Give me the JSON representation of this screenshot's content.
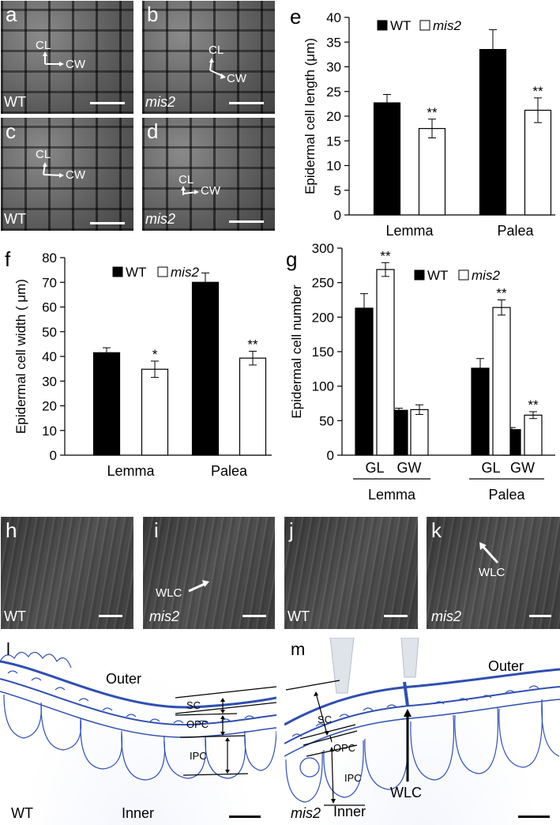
{
  "sem_panels": {
    "a": {
      "letter": "a",
      "genotype": "WT",
      "cl": "CL",
      "cw": "CW"
    },
    "b": {
      "letter": "b",
      "genotype": "mis2",
      "cl": "CL",
      "cw": "CW"
    },
    "c": {
      "letter": "c",
      "genotype": "WT",
      "cl": "CL",
      "cw": "CW"
    },
    "d": {
      "letter": "d",
      "genotype": "mis2",
      "cl": "CL",
      "cw": "CW"
    },
    "h": {
      "letter": "h",
      "genotype": "WT"
    },
    "i": {
      "letter": "i",
      "genotype": "mis2",
      "wlc": "WLC"
    },
    "j": {
      "letter": "j",
      "genotype": "WT"
    },
    "k": {
      "letter": "k",
      "genotype": "mis2",
      "wlc": "WLC"
    }
  },
  "sections": {
    "l": {
      "letter": "l",
      "genotype": "WT",
      "outer": "Outer",
      "inner": "Inner",
      "sc": "SC",
      "opc": "OPC",
      "ipc": "IPC"
    },
    "m": {
      "letter": "m",
      "genotype": "mis2",
      "outer": "Outer",
      "inner": "Inner",
      "sc": "SC",
      "opc": "OPC",
      "ipc": "IPC",
      "wlc": "WLC"
    }
  },
  "colors": {
    "wt_bar": "#000000",
    "mis2_bar": "#ffffff",
    "stain": "#2f4fb0"
  },
  "chart_data": [
    {
      "panel": "e",
      "type": "bar",
      "ylabel": "Epidermal cell length (μm)",
      "ylim": [
        0,
        40
      ],
      "yticks": [
        0,
        5,
        10,
        15,
        20,
        25,
        30,
        35,
        40
      ],
      "legend": {
        "placement": "top-left"
      },
      "categories": [
        "Lemma",
        "Palea"
      ],
      "series": [
        {
          "name": "WT",
          "values": [
            22.7,
            33.5
          ],
          "errors": [
            1.7,
            4.0
          ],
          "sig": [
            "",
            ""
          ]
        },
        {
          "name": "mis2",
          "values": [
            17.5,
            21.2
          ],
          "errors": [
            1.9,
            2.5
          ],
          "sig": [
            "**",
            "**"
          ]
        }
      ]
    },
    {
      "panel": "f",
      "type": "bar",
      "ylabel": "Epidermal cell width ( μm)",
      "ylim": [
        0,
        80
      ],
      "yticks": [
        0,
        10,
        20,
        30,
        40,
        50,
        60,
        70,
        80
      ],
      "legend": {
        "placement": "top-left"
      },
      "categories": [
        "Lemma",
        "Palea"
      ],
      "series": [
        {
          "name": "WT",
          "values": [
            41.5,
            70.0
          ],
          "errors": [
            2.0,
            3.8
          ],
          "sig": [
            "",
            ""
          ]
        },
        {
          "name": "mis2",
          "values": [
            34.8,
            39.3
          ],
          "errors": [
            3.3,
            2.8
          ],
          "sig": [
            "*",
            "**"
          ]
        }
      ]
    },
    {
      "panel": "g",
      "type": "bar",
      "ylabel": "Epidermal cell number",
      "ylim": [
        0,
        300
      ],
      "yticks": [
        0,
        50,
        100,
        150,
        200,
        250,
        300
      ],
      "legend": {
        "placement": "top-right"
      },
      "categories": [
        "GL",
        "GW",
        "GL",
        "GW"
      ],
      "groups": [
        "Lemma",
        "Palea"
      ],
      "series": [
        {
          "name": "WT",
          "values": [
            213,
            65,
            126,
            37
          ],
          "errors": [
            21,
            3,
            14,
            3
          ],
          "sig": [
            "",
            "",
            "",
            ""
          ]
        },
        {
          "name": "mis2",
          "values": [
            269,
            66,
            214,
            58
          ],
          "errors": [
            10,
            7,
            11,
            5
          ],
          "sig": [
            "**",
            "",
            "**",
            "**"
          ]
        }
      ]
    }
  ]
}
